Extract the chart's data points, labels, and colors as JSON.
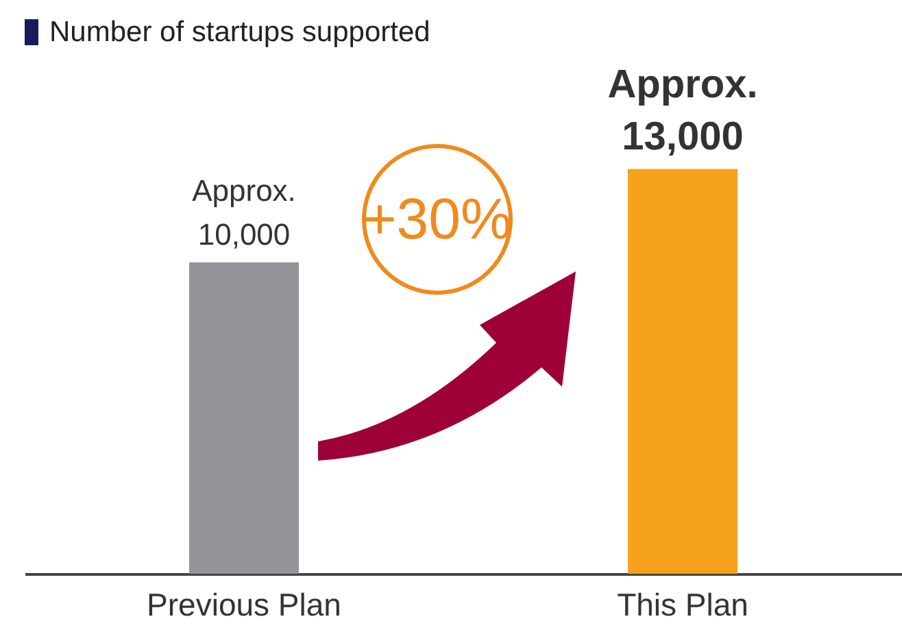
{
  "chart_data": {
    "type": "bar",
    "title": "Number of startups supported",
    "categories": [
      "Previous Plan",
      "This Plan"
    ],
    "values": [
      10000,
      13000
    ],
    "colors": [
      "#939598",
      "#f5a11c"
    ],
    "value_labels": [
      "Approx. 10,000",
      "Approx. 13,000"
    ],
    "annotations": [
      "+30%"
    ]
  }
}
